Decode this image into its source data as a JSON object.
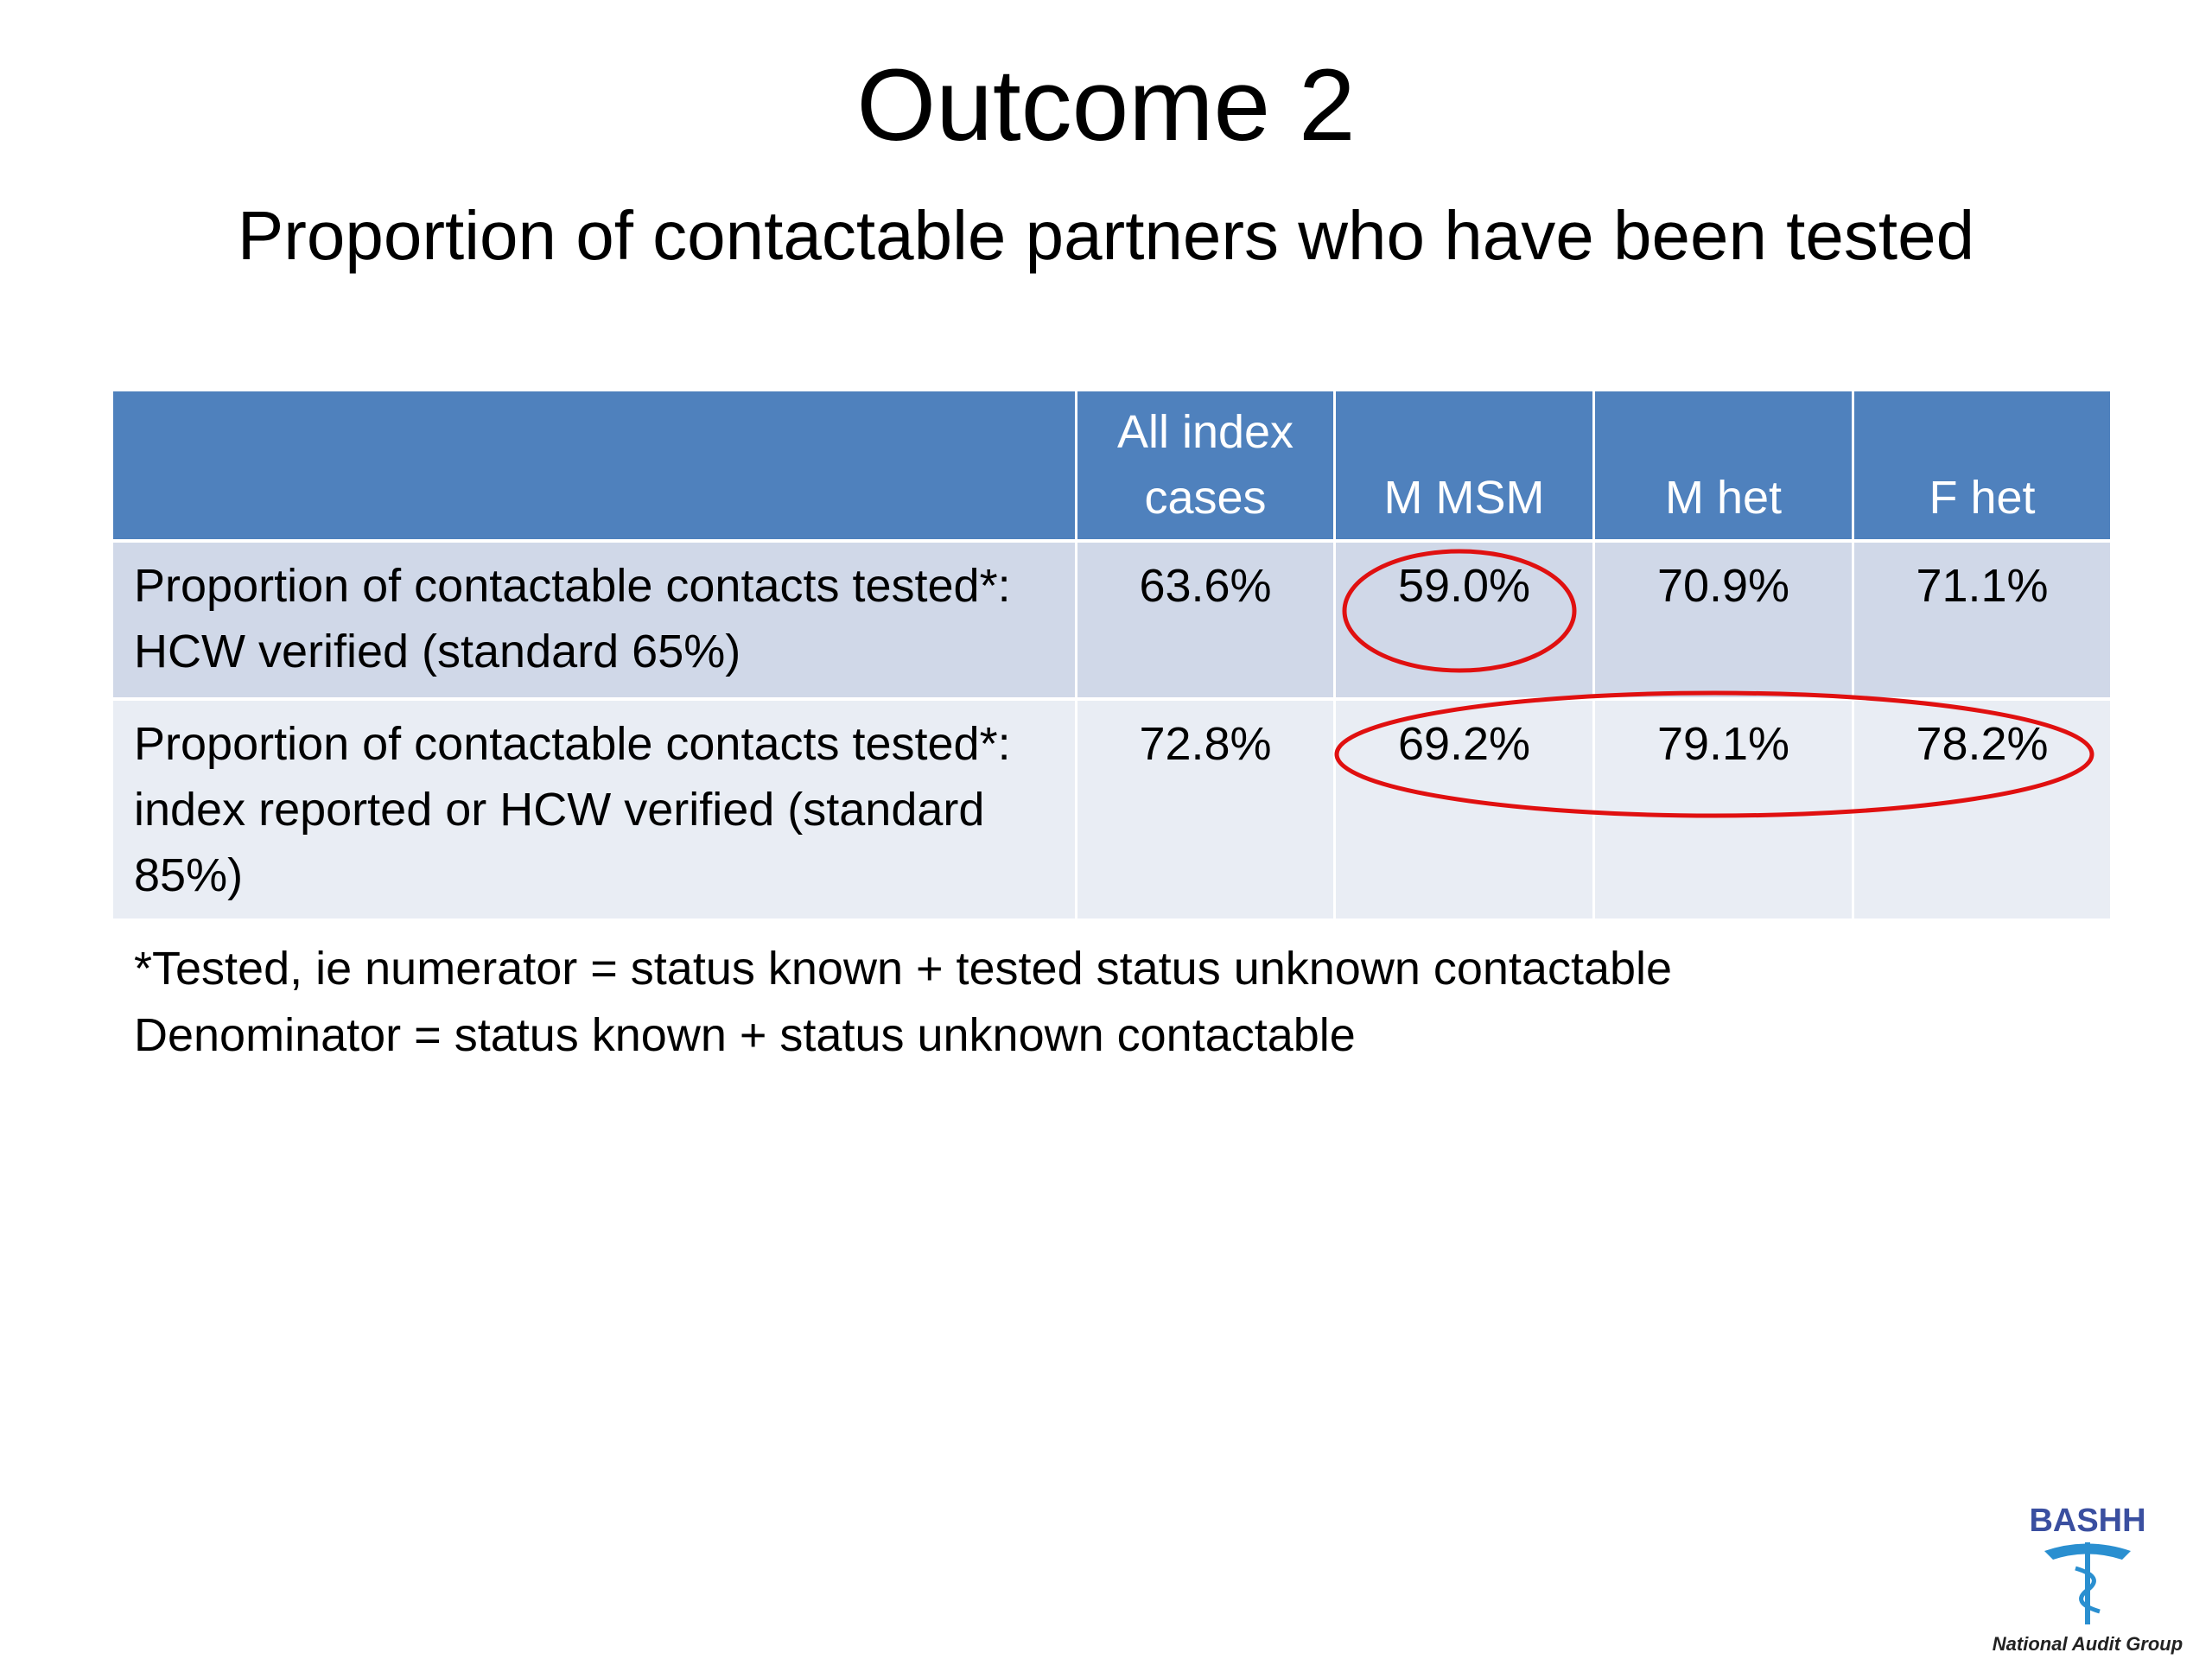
{
  "header": {
    "title": "Outcome 2",
    "subtitle": "Proportion of contactable partners who have been tested"
  },
  "table": {
    "columns": [
      "All index cases",
      "M MSM",
      "M het",
      "F het"
    ],
    "rows": [
      {
        "label": "Proportion of contactable contacts tested*: HCW verified (standard 65%)",
        "cells": [
          "63.6%",
          "59.0%",
          "70.9%",
          "71.1%"
        ]
      },
      {
        "label": "Proportion of contactable contacts tested*: index reported or HCW verified (standard 85%)",
        "cells": [
          "72.8%",
          "69.2%",
          "79.1%",
          "78.2%"
        ]
      }
    ]
  },
  "footnotes": [
    "*Tested, ie numerator = status known + tested status unknown contactable",
    "Denominator = status known + status unknown contactable"
  ],
  "logo": {
    "name": "BASHH",
    "caption": "National Audit Group"
  }
}
